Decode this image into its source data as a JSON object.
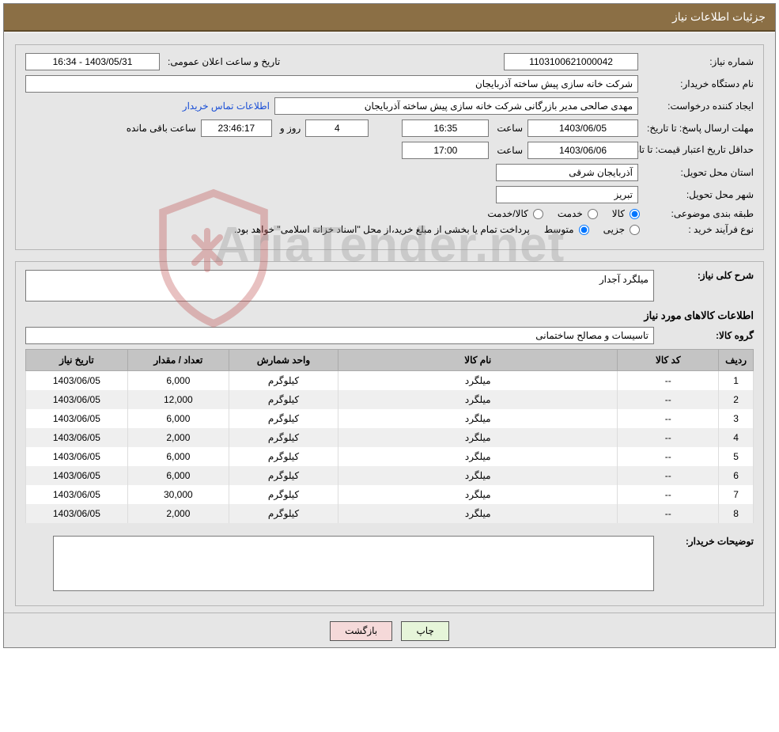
{
  "colors": {
    "header_bg": "#8b6f45",
    "header_fg": "#ffffff",
    "panel_bg": "#e6e6e6",
    "panel_border": "#b5b5b5",
    "field_border": "#7a7a7a",
    "table_header_bg": "#c4c4c4",
    "row_alt_bg": "#efefef",
    "link_color": "#1a4fd6",
    "btn_print_bg": "#e6f5d9",
    "btn_back_bg": "#f5d9d9",
    "watermark_color": "#999999"
  },
  "page": {
    "title": "جزئیات اطلاعات نیاز"
  },
  "labels": {
    "need_number": "شماره نیاز:",
    "announce_datetime": "تاریخ و ساعت اعلان عمومی:",
    "buyer_org": "نام دستگاه خریدار:",
    "request_creator": "ایجاد کننده درخواست:",
    "contact_link": "اطلاعات تماس خریدار",
    "response_deadline": "مهلت ارسال پاسخ: تا تاریخ:",
    "hour": "ساعت",
    "day_and": "روز و",
    "remaining_hour": "ساعت باقی مانده",
    "min_price_validity": "حداقل تاریخ اعتبار قیمت: تا تاریخ:",
    "province": "استان محل تحویل:",
    "city": "شهر محل تحویل:",
    "subject_class": "طبقه بندی موضوعی:",
    "good": "کالا",
    "service": "خدمت",
    "good_service": "کالا/خدمت",
    "purchase_type": "نوع فرآیند خرید :",
    "minor": "جزیی",
    "medium": "متوسط",
    "funding_note": "پرداخت تمام یا بخشی از مبلغ خرید،از محل \"اسناد خزانه اسلامی\" خواهد بود.",
    "need_desc": "شرح کلی نیاز:",
    "needed_goods_info": "اطلاعات کالاهای مورد نیاز",
    "good_group": "گروه کالا:",
    "buyer_notes": "توضیحات خریدار:",
    "row": "ردیف",
    "good_code": "کد کالا",
    "good_name": "نام کالا",
    "unit": "واحد شمارش",
    "qty": "تعداد / مقدار",
    "need_date": "تاریخ نیاز",
    "print": "چاپ",
    "back": "بازگشت"
  },
  "values": {
    "need_number": "1103100621000042",
    "announce_datetime": "1403/05/31 - 16:34",
    "buyer_org": "شرکت خانه سازی پیش ساخته آذربایجان",
    "request_creator": "مهدی صالحی مدیر بازرگانی شرکت خانه سازی پیش ساخته آذربایجان",
    "deadline_date": "1403/06/05",
    "deadline_time": "16:35",
    "remaining_days": "4",
    "remaining_time": "23:46:17",
    "price_valid_date": "1403/06/06",
    "price_valid_time": "17:00",
    "province": "آذربایجان شرقی",
    "city": "تبریز",
    "subject_class_selected": "good",
    "purchase_type_selected": "medium",
    "need_desc": "میلگرد آجدار",
    "good_group": "تاسیسات و مصالح ساختمانی",
    "buyer_notes": ""
  },
  "table": {
    "columns": [
      "ردیف",
      "کد کالا",
      "نام کالا",
      "واحد شمارش",
      "تعداد / مقدار",
      "تاریخ نیاز"
    ],
    "rows": [
      {
        "idx": "1",
        "code": "--",
        "name": "میلگرد",
        "unit": "کیلوگرم",
        "qty": "6,000",
        "date": "1403/06/05"
      },
      {
        "idx": "2",
        "code": "--",
        "name": "میلگرد",
        "unit": "کیلوگرم",
        "qty": "12,000",
        "date": "1403/06/05"
      },
      {
        "idx": "3",
        "code": "--",
        "name": "میلگرد",
        "unit": "کیلوگرم",
        "qty": "6,000",
        "date": "1403/06/05"
      },
      {
        "idx": "4",
        "code": "--",
        "name": "میلگرد",
        "unit": "کیلوگرم",
        "qty": "2,000",
        "date": "1403/06/05"
      },
      {
        "idx": "5",
        "code": "--",
        "name": "میلگرد",
        "unit": "کیلوگرم",
        "qty": "6,000",
        "date": "1403/06/05"
      },
      {
        "idx": "6",
        "code": "--",
        "name": "میلگرد",
        "unit": "کیلوگرم",
        "qty": "6,000",
        "date": "1403/06/05"
      },
      {
        "idx": "7",
        "code": "--",
        "name": "میلگرد",
        "unit": "کیلوگرم",
        "qty": "30,000",
        "date": "1403/06/05"
      },
      {
        "idx": "8",
        "code": "--",
        "name": "میلگرد",
        "unit": "کیلوگرم",
        "qty": "2,000",
        "date": "1403/06/05"
      }
    ]
  },
  "watermark": "AriaTender.net"
}
